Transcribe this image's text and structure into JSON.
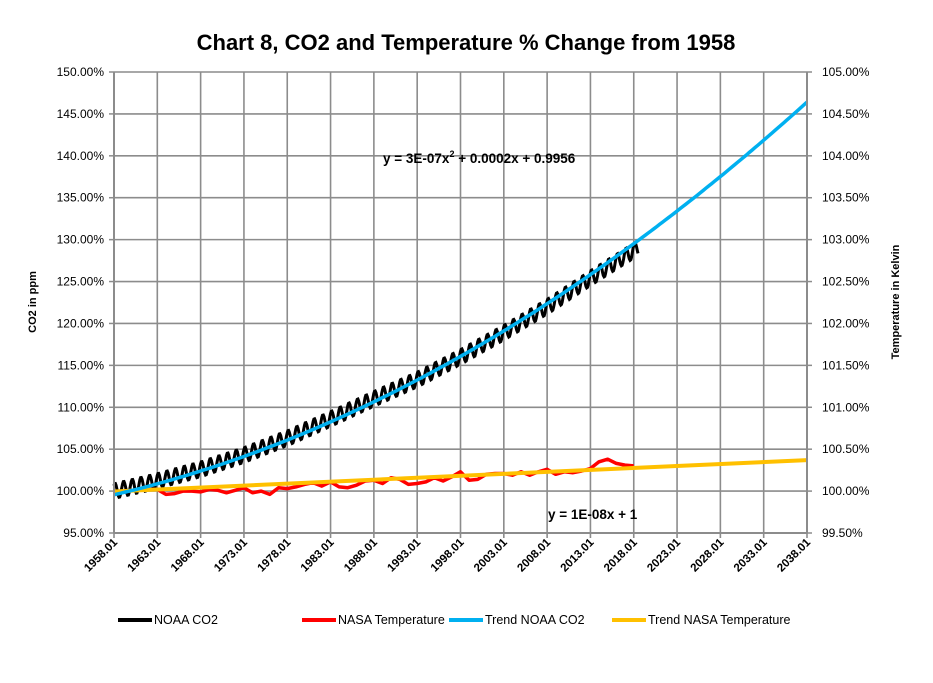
{
  "chart_data": {
    "type": "line",
    "title": "Chart 8, CO2 and Temperature % Change from 1958",
    "ylabel": "CO2 in ppm",
    "y2label": "Temperature in Kelvin",
    "ylim": [
      0.95,
      1.5
    ],
    "y2lim": [
      0.995,
      1.05
    ],
    "xlim": [
      1958.01,
      2038.01
    ],
    "grid": true,
    "legend_position": "bottom",
    "y_ticks": [
      "95.00%",
      "100.00%",
      "105.00%",
      "110.00%",
      "115.00%",
      "120.00%",
      "125.00%",
      "130.00%",
      "135.00%",
      "140.00%",
      "145.00%",
      "150.00%"
    ],
    "y2_ticks": [
      "99.50%",
      "100.00%",
      "100.50%",
      "101.00%",
      "101.50%",
      "102.00%",
      "102.50%",
      "103.00%",
      "103.50%",
      "104.00%",
      "104.50%",
      "105.00%"
    ],
    "x_ticks": [
      "1958.01",
      "1963.01",
      "1968.01",
      "1973.01",
      "1978.01",
      "1983.01",
      "1988.01",
      "1993.01",
      "1998.01",
      "2003.01",
      "2008.01",
      "2013.01",
      "2018.01",
      "2023.01",
      "2028.01",
      "2033.01",
      "2038.01"
    ],
    "annotations": {
      "co2_trend_eq_main": "y = 3E-07x",
      "co2_trend_eq_sup": "2",
      "co2_trend_eq_rest": " + 0.0002x + 0.9956",
      "temp_trend_eq": "y = 1E-08x + 1"
    },
    "series": [
      {
        "name": "NOAA CO2",
        "axis": "left",
        "color": "#000000",
        "years": [
          1958,
          1963,
          1968,
          1973,
          1978,
          1983,
          1988,
          1993,
          1998,
          2003,
          2008,
          2013,
          2018.5
        ],
        "values": [
          1.0,
          1.012,
          1.026,
          1.043,
          1.063,
          1.086,
          1.11,
          1.133,
          1.16,
          1.189,
          1.22,
          1.254,
          1.29
        ],
        "seasonal_amplitude": 0.009
      },
      {
        "name": "NASA Temperature",
        "axis": "right",
        "color": "#ff0000",
        "start_year": 1958,
        "values": [
          1.0,
          0.9999,
          1.0001,
          1.0001,
          1.0002,
          1.0002,
          0.9996,
          0.9997,
          1.0,
          1.0,
          0.9999,
          1.0002,
          1.0001,
          0.9998,
          1.0001,
          1.0004,
          0.9998,
          1.0,
          0.9996,
          1.0004,
          1.0003,
          1.0005,
          1.0008,
          1.001,
          1.0006,
          1.0011,
          1.0005,
          1.0004,
          1.0007,
          1.0012,
          1.0013,
          1.0009,
          1.0016,
          1.0014,
          1.0008,
          1.0009,
          1.0011,
          1.0016,
          1.0012,
          1.0017,
          1.0023,
          1.0013,
          1.0014,
          1.002,
          1.0021,
          1.0021,
          1.0019,
          1.0023,
          1.0019,
          1.0023,
          1.0026,
          1.002,
          1.0023,
          1.0022,
          1.0024,
          1.0027,
          1.0035,
          1.0038,
          1.0033,
          1.0031,
          1.003
        ]
      },
      {
        "name": "Trend NOAA CO2",
        "axis": "left",
        "color": "#00b0f0",
        "formula": {
          "a": 3e-07,
          "b": 0.0002,
          "c": 0.9956,
          "x_unit": "months since 1958.01"
        }
      },
      {
        "name": "Trend NASA Temperature",
        "axis": "right",
        "color": "#ffc000",
        "start_value": 0.99995,
        "end_value": 1.0037
      }
    ]
  }
}
